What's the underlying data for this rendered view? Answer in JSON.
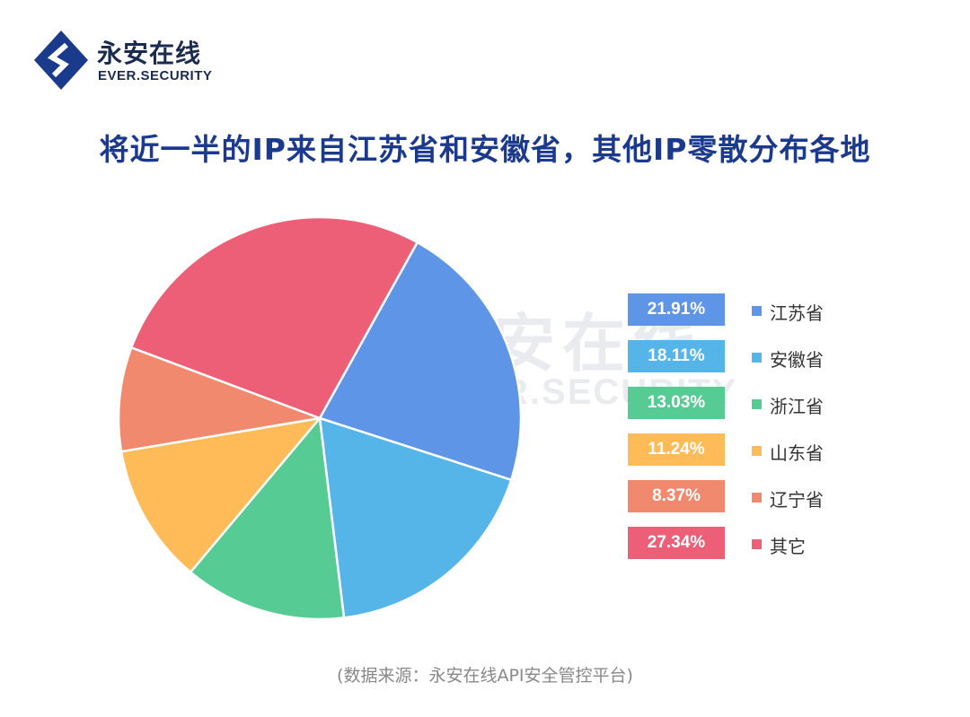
{
  "logo": {
    "name_cn": "永安在线",
    "name_en": "EVER.SECURITY",
    "color": "#1a2b4f"
  },
  "watermark": {
    "name_cn": "永安在线",
    "name_en": "EVER.SECURITY"
  },
  "chart_data": {
    "type": "pie",
    "title": "将近一半的IP来自江苏省和安徽省，其他IP零散分布各地",
    "legend_position": "right",
    "slices": [
      {
        "label": "江苏省",
        "value": 21.91,
        "display": "21.91%",
        "color": "#5e95e6"
      },
      {
        "label": "安徽省",
        "value": 18.11,
        "display": "18.11%",
        "color": "#55b5e8"
      },
      {
        "label": "浙江省",
        "value": 13.03,
        "display": "13.03%",
        "color": "#56cc94"
      },
      {
        "label": "山东省",
        "value": 11.24,
        "display": "11.24%",
        "color": "#ffbb58"
      },
      {
        "label": "辽宁省",
        "value": 8.37,
        "display": "8.37%",
        "color": "#f0896e"
      },
      {
        "label": "其它",
        "value": 27.34,
        "display": "27.34%",
        "color": "#ec5f76"
      }
    ]
  },
  "source": "(数据来源：永安在线API安全管控平台)"
}
